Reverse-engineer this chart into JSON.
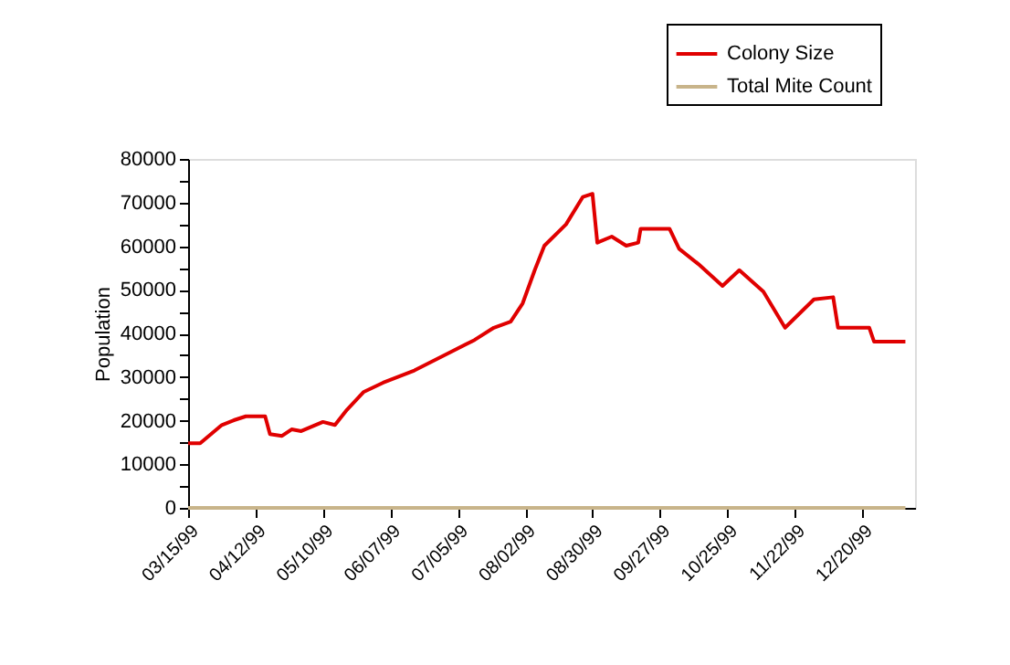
{
  "chart_data": {
    "type": "line",
    "ylabel": "Population",
    "x": [
      "1999-03-15",
      "1999-03-20",
      "1999-03-29",
      "1999-04-03",
      "1999-04-08",
      "1999-04-16",
      "1999-04-18",
      "1999-04-23",
      "1999-04-27",
      "1999-05-01",
      "1999-05-10",
      "1999-05-15",
      "1999-05-20",
      "1999-05-27",
      "1999-06-04",
      "1999-06-17",
      "1999-07-02",
      "1999-07-12",
      "1999-07-20",
      "1999-07-27",
      "1999-08-01",
      "1999-08-06",
      "1999-08-10",
      "1999-08-19",
      "1999-08-26",
      "1999-08-30",
      "1999-09-01",
      "1999-09-07",
      "1999-09-13",
      "1999-09-18",
      "1999-09-19",
      "1999-10-01",
      "1999-10-05",
      "1999-10-13",
      "1999-10-23",
      "1999-10-30",
      "1999-11-09",
      "1999-11-18",
      "1999-11-30",
      "1999-12-08",
      "1999-12-10",
      "1999-12-23",
      "1999-12-25",
      "2000-01-07"
    ],
    "series": [
      {
        "name": "Colony Size",
        "color": "#e00000",
        "values": [
          14800,
          14800,
          19000,
          20100,
          21000,
          21000,
          16900,
          16500,
          18000,
          17600,
          19700,
          19000,
          22500,
          26600,
          28700,
          31500,
          35700,
          38500,
          41300,
          42700,
          46900,
          54500,
          60100,
          65000,
          71300,
          72000,
          60800,
          62200,
          60100,
          60800,
          64000,
          64000,
          59400,
          55900,
          50900,
          54500,
          49600,
          41300,
          47800,
          48300,
          41300,
          41300,
          38100,
          38100
        ]
      },
      {
        "name": "Total Mite Count",
        "color": "#c8b48a",
        "values": [
          0,
          0,
          0,
          0,
          0,
          0,
          0,
          0,
          0,
          0,
          0,
          0,
          0,
          0,
          0,
          0,
          0,
          0,
          0,
          0,
          0,
          0,
          0,
          0,
          0,
          0,
          0,
          0,
          0,
          0,
          0,
          0,
          0,
          0,
          0,
          0,
          0,
          0,
          0,
          0,
          0,
          0,
          0,
          0
        ]
      }
    ],
    "xlim": [
      "1999-03-15",
      "2000-01-11"
    ],
    "xticks": [
      {
        "value": "1999-03-15",
        "label": "03/15/99"
      },
      {
        "value": "1999-04-12",
        "label": "04/12/99"
      },
      {
        "value": "1999-05-10",
        "label": "05/10/99"
      },
      {
        "value": "1999-06-07",
        "label": "06/07/99"
      },
      {
        "value": "1999-07-05",
        "label": "07/05/99"
      },
      {
        "value": "1999-08-02",
        "label": "08/02/99"
      },
      {
        "value": "1999-08-30",
        "label": "08/30/99"
      },
      {
        "value": "1999-09-27",
        "label": "09/27/99"
      },
      {
        "value": "1999-10-25",
        "label": "10/25/99"
      },
      {
        "value": "1999-11-22",
        "label": "11/22/99"
      },
      {
        "value": "1999-12-20",
        "label": "12/20/99"
      }
    ],
    "ylim": [
      0,
      80000
    ],
    "yticks": [
      0,
      {
        "value": 5000,
        "label": null
      },
      10000,
      {
        "value": 15000,
        "label": null
      },
      20000,
      {
        "value": 25000,
        "label": null
      },
      30000,
      {
        "value": 35000,
        "label": null
      },
      40000,
      {
        "value": 45000,
        "label": null
      },
      50000,
      {
        "value": 55000,
        "label": null
      },
      60000,
      {
        "value": 65000,
        "label": null
      },
      70000,
      {
        "value": 75000,
        "label": null
      },
      80000
    ],
    "grid": false,
    "legend": "top right",
    "marker": "none",
    "line_style": "solid"
  }
}
